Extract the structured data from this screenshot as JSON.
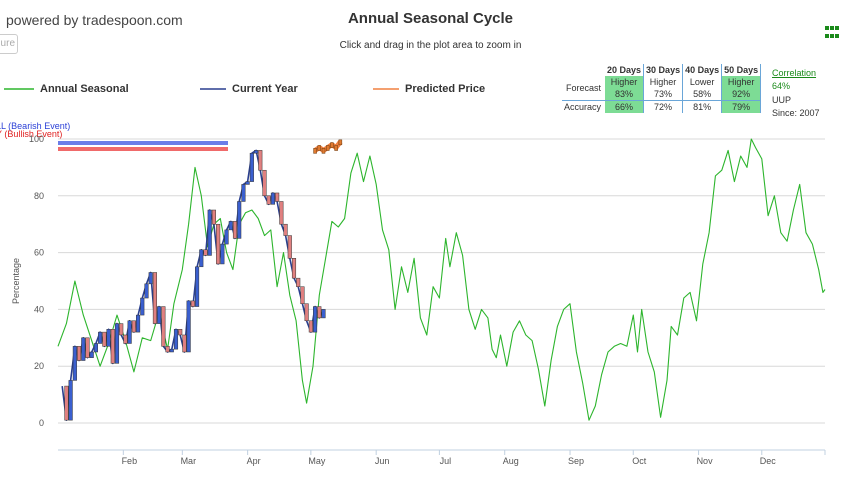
{
  "header": {
    "powered_by": "powered by tradespoon.com",
    "button_fragment": "ure",
    "title": "Annual Seasonal Cycle",
    "subtitle": "Click and drag in the plot area to zoom in"
  },
  "legend": {
    "items": [
      {
        "label": "Annual Seasonal",
        "color": "#2db52d"
      },
      {
        "label": "Current Year",
        "color": "#2a3f8f"
      },
      {
        "label": "Predicted Price",
        "color": "#f08040"
      }
    ]
  },
  "forecast_table": {
    "headers": [
      "20 Days",
      "30 Days",
      "40 Days",
      "50 Days"
    ],
    "forecast_label": "Forecast",
    "forecast_dir": [
      "Higher",
      "Higher",
      "Lower",
      "Higher"
    ],
    "forecast_pct": [
      "83%",
      "73%",
      "58%",
      "92%"
    ],
    "accuracy_label": "Accuracy",
    "accuracy_pct": [
      "66%",
      "72%",
      "81%",
      "79%"
    ],
    "highlight_color": "#7ddc95"
  },
  "side_info": {
    "correlation_label": "Correlation",
    "correlation_value": "64%",
    "ticker": "UUP",
    "since": "Since: 2007"
  },
  "events": {
    "bearish": "LL (Bearish Event)",
    "bullish": "Y (Bullish Event)",
    "bearish_color": "#6b7de8",
    "bullish_color": "#f06a6a"
  },
  "chart_data": {
    "type": "line",
    "title": "Annual Seasonal Cycle",
    "ylabel": "Percentage",
    "xlabel": "",
    "ylim": [
      0,
      100
    ],
    "yticks": [
      0,
      20,
      40,
      60,
      80,
      100
    ],
    "xlim": [
      1,
      365
    ],
    "x_ticks": [
      {
        "label": "Feb",
        "x": 32
      },
      {
        "label": "Mar",
        "x": 60
      },
      {
        "label": "Apr",
        "x": 91
      },
      {
        "label": "May",
        "x": 121
      },
      {
        "label": "Jun",
        "x": 152
      },
      {
        "label": "Jul",
        "x": 182
      },
      {
        "label": "Aug",
        "x": 213
      },
      {
        "label": "Sep",
        "x": 244
      },
      {
        "label": "Oct",
        "x": 274
      },
      {
        "label": "Nov",
        "x": 305
      },
      {
        "label": "Dec",
        "x": 335
      }
    ],
    "grid": true,
    "series": [
      {
        "name": "Annual Seasonal",
        "color": "#2db52d",
        "points": [
          [
            1,
            27
          ],
          [
            5,
            35
          ],
          [
            9,
            50
          ],
          [
            13,
            38
          ],
          [
            17,
            29
          ],
          [
            21,
            20
          ],
          [
            25,
            28
          ],
          [
            29,
            38
          ],
          [
            33,
            29
          ],
          [
            37,
            18
          ],
          [
            41,
            30
          ],
          [
            45,
            29
          ],
          [
            49,
            39
          ],
          [
            53,
            26
          ],
          [
            56,
            42
          ],
          [
            60,
            54
          ],
          [
            63,
            70
          ],
          [
            66,
            90
          ],
          [
            69,
            80
          ],
          [
            72,
            62
          ],
          [
            75,
            70
          ],
          [
            78,
            72
          ],
          [
            81,
            60
          ],
          [
            84,
            54
          ],
          [
            87,
            70
          ],
          [
            90,
            74
          ],
          [
            93,
            75
          ],
          [
            96,
            72
          ],
          [
            99,
            66
          ],
          [
            102,
            68
          ],
          [
            105,
            48
          ],
          [
            108,
            60
          ],
          [
            111,
            45
          ],
          [
            114,
            36
          ],
          [
            117,
            15
          ],
          [
            119,
            7
          ],
          [
            122,
            20
          ],
          [
            125,
            45
          ],
          [
            128,
            58
          ],
          [
            131,
            71
          ],
          [
            134,
            69
          ],
          [
            137,
            72
          ],
          [
            140,
            88
          ],
          [
            143,
            95
          ],
          [
            146,
            85
          ],
          [
            149,
            94
          ],
          [
            152,
            84
          ],
          [
            155,
            68
          ],
          [
            158,
            61
          ],
          [
            161,
            40
          ],
          [
            164,
            55
          ],
          [
            167,
            46
          ],
          [
            170,
            58
          ],
          [
            173,
            37
          ],
          [
            176,
            31
          ],
          [
            179,
            48
          ],
          [
            182,
            44
          ],
          [
            185,
            65
          ],
          [
            187,
            55
          ],
          [
            190,
            67
          ],
          [
            193,
            59
          ],
          [
            196,
            40
          ],
          [
            199,
            33
          ],
          [
            202,
            40
          ],
          [
            205,
            37
          ],
          [
            207,
            26
          ],
          [
            209,
            23
          ],
          [
            211,
            31
          ],
          [
            214,
            20
          ],
          [
            217,
            32
          ],
          [
            220,
            36
          ],
          [
            223,
            31
          ],
          [
            226,
            29
          ],
          [
            229,
            19
          ],
          [
            232,
            6
          ],
          [
            235,
            22
          ],
          [
            238,
            34
          ],
          [
            241,
            40
          ],
          [
            244,
            42
          ],
          [
            247,
            25
          ],
          [
            250,
            14
          ],
          [
            253,
            1
          ],
          [
            256,
            6
          ],
          [
            259,
            17
          ],
          [
            262,
            25
          ],
          [
            265,
            27
          ],
          [
            268,
            28
          ],
          [
            271,
            27
          ],
          [
            274,
            38
          ],
          [
            276,
            25
          ],
          [
            278,
            40
          ],
          [
            281,
            25
          ],
          [
            284,
            18
          ],
          [
            287,
            2
          ],
          [
            290,
            15
          ],
          [
            292,
            34
          ],
          [
            295,
            31
          ],
          [
            298,
            44
          ],
          [
            301,
            46
          ],
          [
            304,
            36
          ],
          [
            307,
            56
          ],
          [
            310,
            67
          ],
          [
            313,
            87
          ],
          [
            316,
            89
          ],
          [
            319,
            96
          ],
          [
            322,
            85
          ],
          [
            325,
            94
          ],
          [
            328,
            90
          ],
          [
            330,
            100
          ],
          [
            332,
            97
          ],
          [
            335,
            93
          ],
          [
            338,
            73
          ],
          [
            341,
            80
          ],
          [
            344,
            67
          ],
          [
            347,
            64
          ],
          [
            350,
            75
          ],
          [
            353,
            84
          ],
          [
            356,
            67
          ],
          [
            359,
            63
          ],
          [
            362,
            54
          ],
          [
            364,
            46
          ],
          [
            365,
            47
          ]
        ]
      },
      {
        "name": "Current Year",
        "color": "#2a3f8f",
        "points": [
          [
            3,
            13
          ],
          [
            5,
            1
          ],
          [
            7,
            15
          ],
          [
            9,
            27
          ],
          [
            11,
            22
          ],
          [
            13,
            30
          ],
          [
            15,
            23
          ],
          [
            17,
            25
          ],
          [
            19,
            28
          ],
          [
            21,
            32
          ],
          [
            23,
            27
          ],
          [
            25,
            33
          ],
          [
            27,
            21
          ],
          [
            29,
            35
          ],
          [
            31,
            31
          ],
          [
            33,
            28
          ],
          [
            35,
            36
          ],
          [
            37,
            32
          ],
          [
            39,
            38
          ],
          [
            41,
            44
          ],
          [
            43,
            49
          ],
          [
            45,
            53
          ],
          [
            47,
            35
          ],
          [
            49,
            41
          ],
          [
            51,
            27
          ],
          [
            53,
            25
          ],
          [
            55,
            26
          ],
          [
            57,
            33
          ],
          [
            59,
            31
          ],
          [
            61,
            25
          ],
          [
            63,
            43
          ],
          [
            65,
            41
          ],
          [
            67,
            55
          ],
          [
            69,
            61
          ],
          [
            71,
            59
          ],
          [
            73,
            75
          ],
          [
            75,
            70
          ],
          [
            77,
            56
          ],
          [
            79,
            63
          ],
          [
            81,
            68
          ],
          [
            83,
            71
          ],
          [
            85,
            65
          ],
          [
            87,
            78
          ],
          [
            89,
            84
          ],
          [
            91,
            85
          ],
          [
            93,
            95
          ],
          [
            95,
            96
          ],
          [
            97,
            89
          ],
          [
            99,
            80
          ],
          [
            101,
            77
          ],
          [
            103,
            81
          ],
          [
            105,
            78
          ],
          [
            107,
            70
          ],
          [
            109,
            66
          ],
          [
            111,
            58
          ],
          [
            113,
            51
          ],
          [
            115,
            48
          ],
          [
            117,
            42
          ],
          [
            119,
            36
          ],
          [
            121,
            32
          ],
          [
            123,
            41
          ],
          [
            125,
            37
          ],
          [
            127,
            40
          ]
        ]
      },
      {
        "name": "Predicted Price",
        "color": "#f08040",
        "points": [
          [
            123,
            96
          ],
          [
            125,
            97
          ],
          [
            127,
            96
          ],
          [
            129,
            97
          ],
          [
            131,
            98
          ],
          [
            133,
            97
          ],
          [
            135,
            99
          ]
        ]
      }
    ]
  }
}
